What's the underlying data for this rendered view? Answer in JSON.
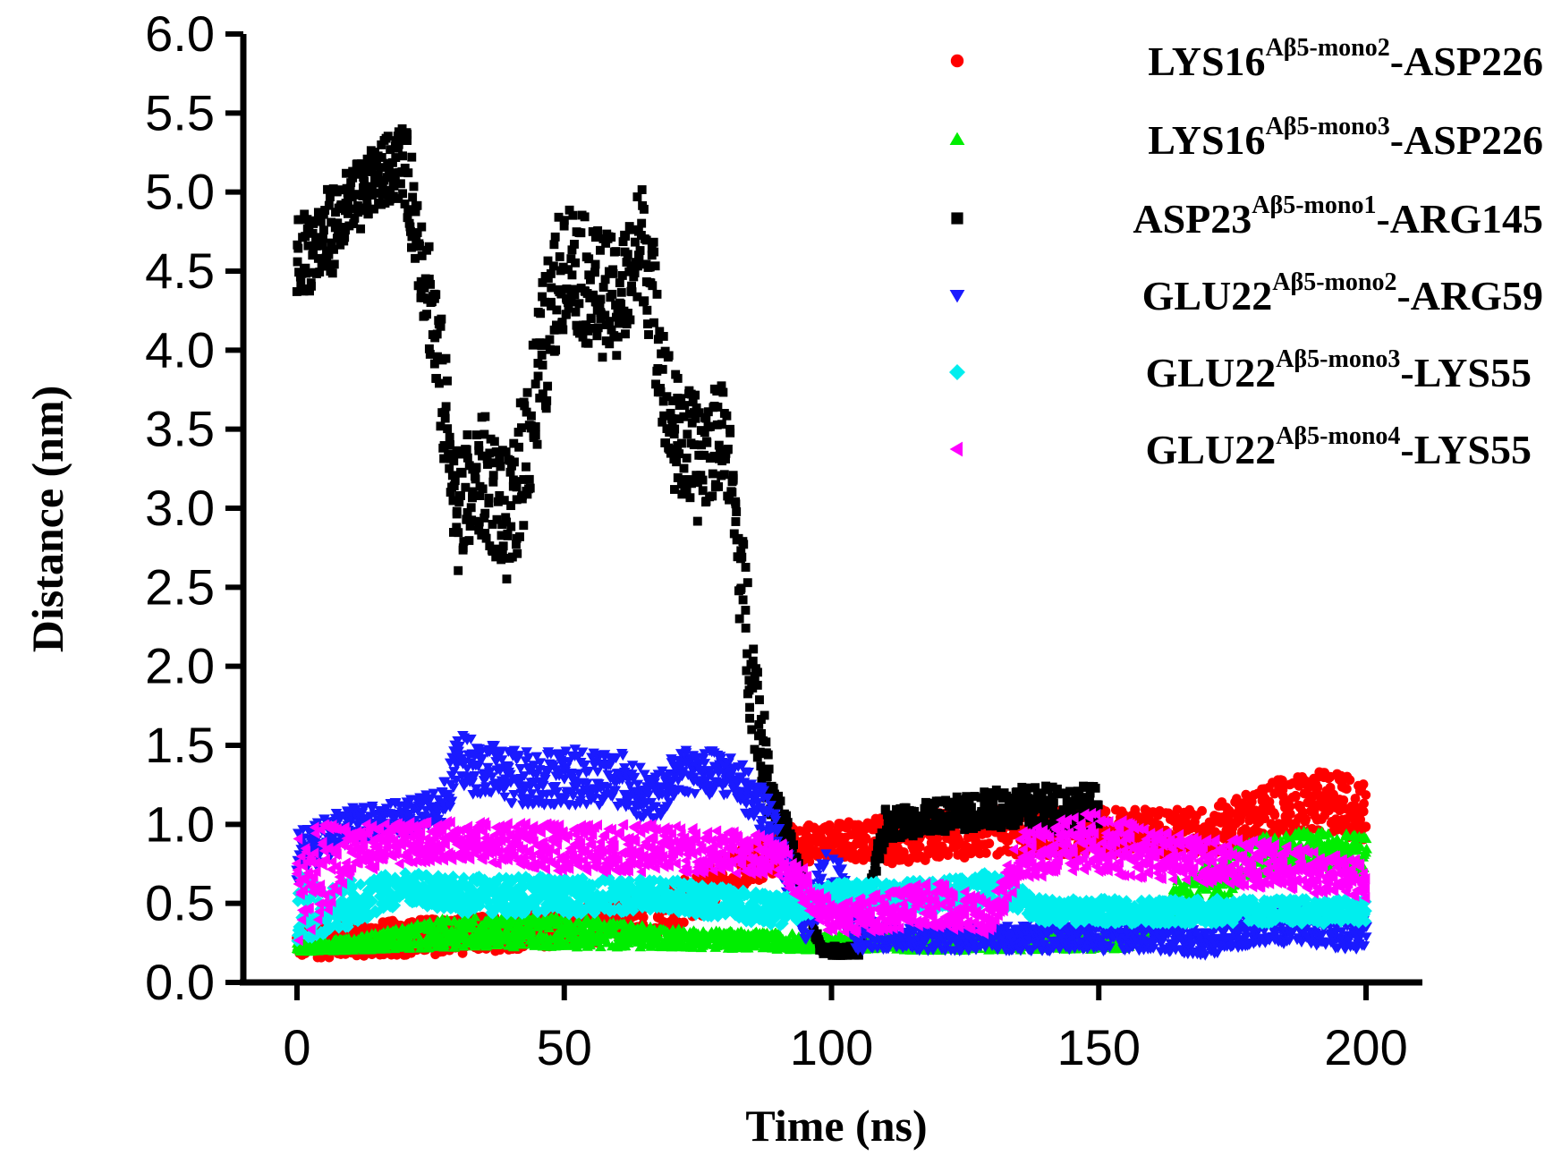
{
  "chart_data": {
    "type": "scatter",
    "xlabel": "Time (ns)",
    "ylabel": "Distance (nm)",
    "xlim": [
      0,
      200
    ],
    "ylim": [
      0.0,
      6.0
    ],
    "xticks": [
      "0",
      "50",
      "100",
      "150",
      "200"
    ],
    "yticks": [
      "0.0",
      "0.5",
      "1.0",
      "1.5",
      "2.0",
      "2.5",
      "3.0",
      "3.5",
      "4.0",
      "4.5",
      "5.0",
      "5.5",
      "6.0"
    ],
    "legend_position": "top-right",
    "series": [
      {
        "id": "lys16-m2",
        "base": "LYS16",
        "sup": "Aβ5-mono2",
        "tail": "-ASP226",
        "color": "#ff0000",
        "marker": "circle",
        "profile": [
          [
            0,
            0.25,
            0.1
          ],
          [
            30,
            0.3,
            0.12
          ],
          [
            50,
            0.35,
            0.12
          ],
          [
            70,
            0.45,
            0.15
          ],
          [
            90,
            0.85,
            0.15
          ],
          [
            100,
            0.9,
            0.1
          ],
          [
            110,
            0.9,
            0.15
          ],
          [
            130,
            0.95,
            0.15
          ],
          [
            150,
            0.95,
            0.15
          ],
          [
            170,
            0.95,
            0.15
          ],
          [
            185,
            1.1,
            0.2
          ],
          [
            195,
            1.15,
            0.2
          ],
          [
            200,
            1.05,
            0.2
          ]
        ]
      },
      {
        "id": "lys16-m3",
        "base": "LYS16",
        "sup": "Aβ5-mono3",
        "tail": "-ASP226",
        "color": "#00ee00",
        "marker": "triangle-up",
        "profile": [
          [
            0,
            0.22,
            0.03
          ],
          [
            10,
            0.24,
            0.04
          ],
          [
            30,
            0.32,
            0.1
          ],
          [
            50,
            0.32,
            0.1
          ],
          [
            70,
            0.28,
            0.06
          ],
          [
            100,
            0.25,
            0.05
          ],
          [
            130,
            0.25,
            0.05
          ],
          [
            155,
            0.26,
            0.05
          ],
          [
            165,
            0.5,
            0.15
          ],
          [
            180,
            0.8,
            0.12
          ],
          [
            190,
            0.85,
            0.12
          ],
          [
            200,
            0.8,
            0.12
          ]
        ]
      },
      {
        "id": "asp23-m1",
        "base": "ASP23",
        "sup": "Aβ5-mono1",
        "tail": "-ARG145",
        "color": "#000000",
        "marker": "square",
        "profile": [
          [
            0,
            4.6,
            0.25
          ],
          [
            5,
            4.7,
            0.3
          ],
          [
            10,
            4.9,
            0.25
          ],
          [
            15,
            5.1,
            0.2
          ],
          [
            20,
            5.2,
            0.25
          ],
          [
            25,
            4.3,
            0.4
          ],
          [
            30,
            3.0,
            0.4
          ],
          [
            35,
            3.2,
            0.4
          ],
          [
            40,
            2.9,
            0.4
          ],
          [
            45,
            3.8,
            0.5
          ],
          [
            50,
            4.6,
            0.4
          ],
          [
            55,
            4.4,
            0.4
          ],
          [
            60,
            4.3,
            0.4
          ],
          [
            65,
            4.7,
            0.4
          ],
          [
            70,
            3.5,
            0.4
          ],
          [
            75,
            3.3,
            0.4
          ],
          [
            80,
            3.5,
            0.3
          ],
          [
            85,
            2.0,
            0.4
          ],
          [
            88,
            1.3,
            0.2
          ],
          [
            92,
            0.9,
            0.1
          ],
          [
            98,
            0.2,
            0.03
          ],
          [
            105,
            0.2,
            0.03
          ],
          [
            110,
            1.0,
            0.1
          ],
          [
            120,
            1.05,
            0.1
          ],
          [
            130,
            1.1,
            0.12
          ],
          [
            140,
            1.1,
            0.15
          ],
          [
            150,
            1.1,
            0.15
          ]
        ]
      },
      {
        "id": "glu22-m2",
        "base": "GLU22",
        "sup": "Aβ5-mono2",
        "tail": "-ARG59",
        "color": "#1a1aff",
        "marker": "triangle-down",
        "profile": [
          [
            0,
            0.8,
            0.15
          ],
          [
            10,
            1.0,
            0.12
          ],
          [
            20,
            1.05,
            0.1
          ],
          [
            27,
            1.1,
            0.12
          ],
          [
            30,
            1.4,
            0.18
          ],
          [
            40,
            1.3,
            0.18
          ],
          [
            50,
            1.3,
            0.18
          ],
          [
            60,
            1.3,
            0.18
          ],
          [
            67,
            1.15,
            0.15
          ],
          [
            72,
            1.35,
            0.15
          ],
          [
            82,
            1.3,
            0.15
          ],
          [
            88,
            1.05,
            0.15
          ],
          [
            95,
            0.4,
            0.15
          ],
          [
            100,
            0.7,
            0.2
          ],
          [
            105,
            0.3,
            0.1
          ],
          [
            120,
            0.28,
            0.08
          ],
          [
            140,
            0.28,
            0.08
          ],
          [
            160,
            0.3,
            0.1
          ],
          [
            170,
            0.25,
            0.08
          ],
          [
            180,
            0.35,
            0.1
          ],
          [
            190,
            0.35,
            0.12
          ],
          [
            200,
            0.3,
            0.1
          ]
        ]
      },
      {
        "id": "glu22-m3",
        "base": "GLU22",
        "sup": "Aβ5-mono3",
        "tail": "-LYS55",
        "color": "#00eeee",
        "marker": "diamond",
        "profile": [
          [
            0,
            0.5,
            0.25
          ],
          [
            5,
            0.45,
            0.15
          ],
          [
            10,
            0.5,
            0.15
          ],
          [
            20,
            0.6,
            0.1
          ],
          [
            30,
            0.55,
            0.12
          ],
          [
            50,
            0.55,
            0.12
          ],
          [
            70,
            0.55,
            0.1
          ],
          [
            90,
            0.45,
            0.1
          ],
          [
            100,
            0.55,
            0.08
          ],
          [
            120,
            0.55,
            0.1
          ],
          [
            130,
            0.6,
            0.1
          ],
          [
            140,
            0.45,
            0.08
          ],
          [
            160,
            0.45,
            0.08
          ],
          [
            180,
            0.45,
            0.08
          ],
          [
            200,
            0.45,
            0.08
          ]
        ]
      },
      {
        "id": "glu22-m4",
        "base": "GLU22",
        "sup": "Aβ5-mono4",
        "tail": "-LYS55",
        "color": "#ff00ff",
        "marker": "triangle-left",
        "profile": [
          [
            0,
            0.6,
            0.35
          ],
          [
            5,
            0.7,
            0.3
          ],
          [
            10,
            0.85,
            0.15
          ],
          [
            30,
            0.9,
            0.12
          ],
          [
            50,
            0.85,
            0.15
          ],
          [
            70,
            0.85,
            0.15
          ],
          [
            90,
            0.8,
            0.12
          ],
          [
            100,
            0.4,
            0.1
          ],
          [
            110,
            0.45,
            0.12
          ],
          [
            120,
            0.5,
            0.15
          ],
          [
            130,
            0.4,
            0.1
          ],
          [
            135,
            0.8,
            0.15
          ],
          [
            150,
            0.9,
            0.2
          ],
          [
            160,
            0.8,
            0.15
          ],
          [
            180,
            0.75,
            0.15
          ],
          [
            200,
            0.65,
            0.12
          ]
        ]
      }
    ]
  }
}
